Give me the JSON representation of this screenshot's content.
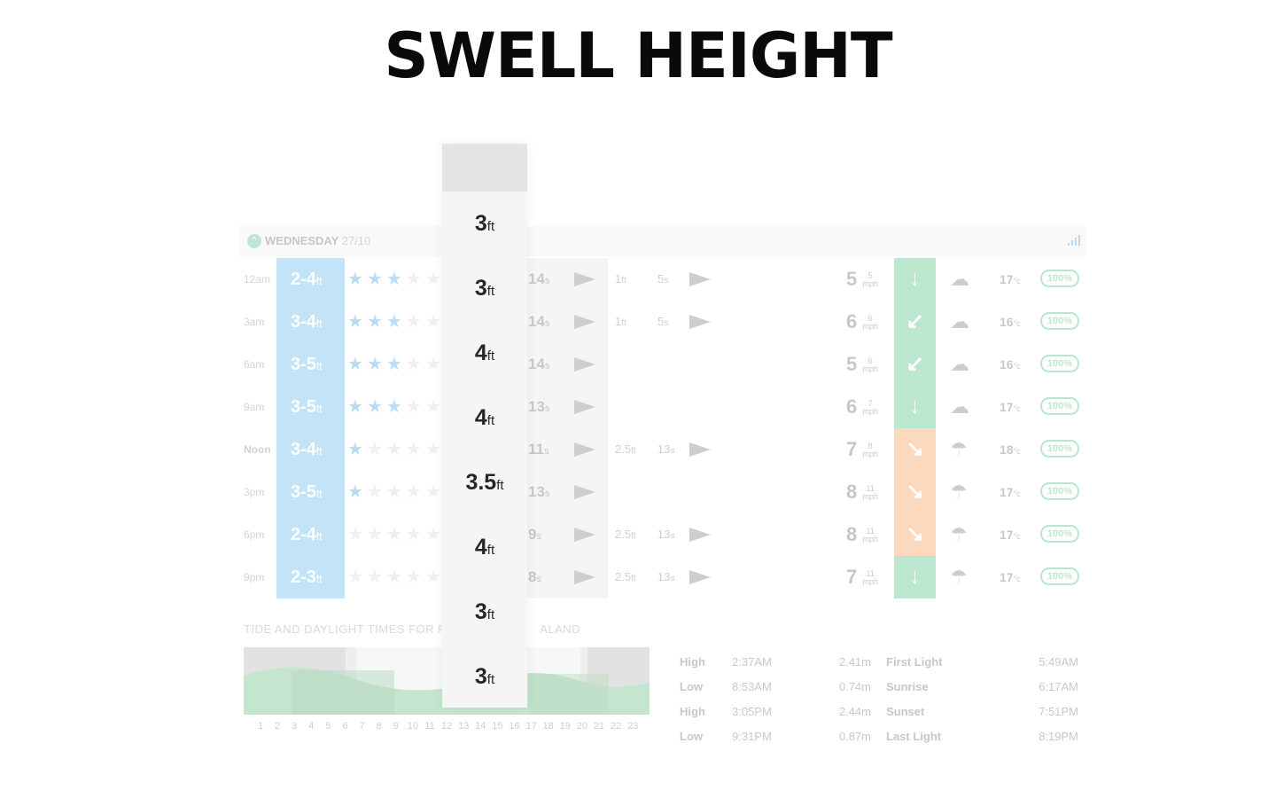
{
  "title": "SWELL HEIGHT",
  "day": {
    "name": "WEDNESDAY",
    "date": "27/10",
    "icon": "chevron-up-icon"
  },
  "rows": [
    {
      "time": "12am",
      "surf": "2-4",
      "surf_unit": "ft",
      "stars_on": 3,
      "period": "14",
      "period_unit": "s",
      "secondary_height": "1",
      "secondary_unit": "ft",
      "secondary_period": "5",
      "secondary_period_unit": "s",
      "wind_speed": "5",
      "wind_gust": "5",
      "wind_unit": "mph",
      "wind_arrow": "↓",
      "weather_icon": "cloud-icon",
      "temp": "17",
      "temp_unit": "°c",
      "probability": "100%"
    },
    {
      "time": "3am",
      "surf": "3-4",
      "surf_unit": "ft",
      "stars_on": 3,
      "period": "14",
      "period_unit": "s",
      "secondary_height": "1",
      "secondary_unit": "ft",
      "secondary_period": "5",
      "secondary_period_unit": "s",
      "wind_speed": "6",
      "wind_gust": "6",
      "wind_unit": "mph",
      "wind_arrow": "↙",
      "weather_icon": "cloud-icon",
      "temp": "16",
      "temp_unit": "°c",
      "probability": "100%"
    },
    {
      "time": "6am",
      "surf": "3-5",
      "surf_unit": "ft",
      "stars_on": 3,
      "period": "14",
      "period_unit": "s",
      "secondary_height": "",
      "secondary_unit": "",
      "secondary_period": "",
      "secondary_period_unit": "",
      "wind_speed": "5",
      "wind_gust": "6",
      "wind_unit": "mph",
      "wind_arrow": "↙",
      "weather_icon": "cloud-icon",
      "temp": "16",
      "temp_unit": "°c",
      "probability": "100%"
    },
    {
      "time": "9am",
      "surf": "3-5",
      "surf_unit": "ft",
      "stars_on": 3,
      "period": "13",
      "period_unit": "s",
      "secondary_height": "",
      "secondary_unit": "",
      "secondary_period": "",
      "secondary_period_unit": "",
      "wind_speed": "6",
      "wind_gust": "7",
      "wind_unit": "mph",
      "wind_arrow": "↓",
      "weather_icon": "cloud-icon",
      "temp": "17",
      "temp_unit": "°c",
      "probability": "100%"
    },
    {
      "time": "Noon",
      "surf": "3-4",
      "surf_unit": "ft",
      "stars_on": 1,
      "period": "11",
      "period_unit": "s",
      "secondary_height": "2.5",
      "secondary_unit": "ft",
      "secondary_period": "13",
      "secondary_period_unit": "s",
      "wind_speed": "7",
      "wind_gust": "8",
      "wind_unit": "mph",
      "wind_arrow": "↘",
      "weather_icon": "sun-rain-icon",
      "temp": "18",
      "temp_unit": "°c",
      "probability": "100%"
    },
    {
      "time": "3pm",
      "surf": "3-5",
      "surf_unit": "ft",
      "stars_on": 1,
      "period": "13",
      "period_unit": "s",
      "secondary_height": "",
      "secondary_unit": "",
      "secondary_period": "",
      "secondary_period_unit": "",
      "wind_speed": "8",
      "wind_gust": "11",
      "wind_unit": "mph",
      "wind_arrow": "↘",
      "weather_icon": "sun-rain-icon",
      "temp": "17",
      "temp_unit": "°c",
      "probability": "100%"
    },
    {
      "time": "6pm",
      "surf": "2-4",
      "surf_unit": "ft",
      "stars_on": 0,
      "period": "9",
      "period_unit": "s",
      "secondary_height": "2.5",
      "secondary_unit": "ft",
      "secondary_period": "13",
      "secondary_period_unit": "s",
      "wind_speed": "8",
      "wind_gust": "11",
      "wind_unit": "mph",
      "wind_arrow": "↘",
      "weather_icon": "sun-rain-icon",
      "temp": "17",
      "temp_unit": "°c",
      "probability": "100%"
    },
    {
      "time": "9pm",
      "surf": "2-3",
      "surf_unit": "ft",
      "stars_on": 0,
      "period": "8",
      "period_unit": "s",
      "secondary_height": "2.5",
      "secondary_unit": "ft",
      "secondary_period": "13",
      "secondary_period_unit": "s",
      "wind_speed": "7",
      "wind_gust": "11",
      "wind_unit": "mph",
      "wind_arrow": "↓",
      "weather_icon": "moon-rain-icon",
      "temp": "17",
      "temp_unit": "°c",
      "probability": "100%"
    }
  ],
  "swell_highlight": [
    {
      "value": "3",
      "unit": "ft"
    },
    {
      "value": "3",
      "unit": "ft"
    },
    {
      "value": "4",
      "unit": "ft"
    },
    {
      "value": "4",
      "unit": "ft"
    },
    {
      "value": "3.5",
      "unit": "ft"
    },
    {
      "value": "4",
      "unit": "ft"
    },
    {
      "value": "3",
      "unit": "ft"
    },
    {
      "value": "3",
      "unit": "ft"
    }
  ],
  "tide": {
    "title": "TIDE AND DAYLIGHT TIMES FOR RA",
    "title_end": "ALAND",
    "hours": [
      "1",
      "2",
      "3",
      "4",
      "5",
      "6",
      "7",
      "8",
      "9",
      "10",
      "11",
      "12",
      "13",
      "14",
      "15",
      "16",
      "17",
      "18",
      "19",
      "20",
      "21",
      "22",
      "23"
    ],
    "entries": [
      {
        "type": "High",
        "time": "2:37AM",
        "height": "2.41m",
        "label": "First Light",
        "label_time": "5:49AM"
      },
      {
        "type": "Low",
        "time": "8:53AM",
        "height": "0.74m",
        "label": "Sunrise",
        "label_time": "6:17AM"
      },
      {
        "type": "High",
        "time": "3:05PM",
        "height": "2.44m",
        "label": "Sunset",
        "label_time": "7:51PM"
      },
      {
        "type": "Low",
        "time": "9:31PM",
        "height": "0.87m",
        "label": "Last Light",
        "label_time": "8:19PM"
      }
    ]
  },
  "colors": {
    "swell_column": "#45aee6",
    "offshore_wind": "#2fb56a",
    "onshore_wind": "#f08a3c",
    "probability_badge": "#2fb56a"
  }
}
